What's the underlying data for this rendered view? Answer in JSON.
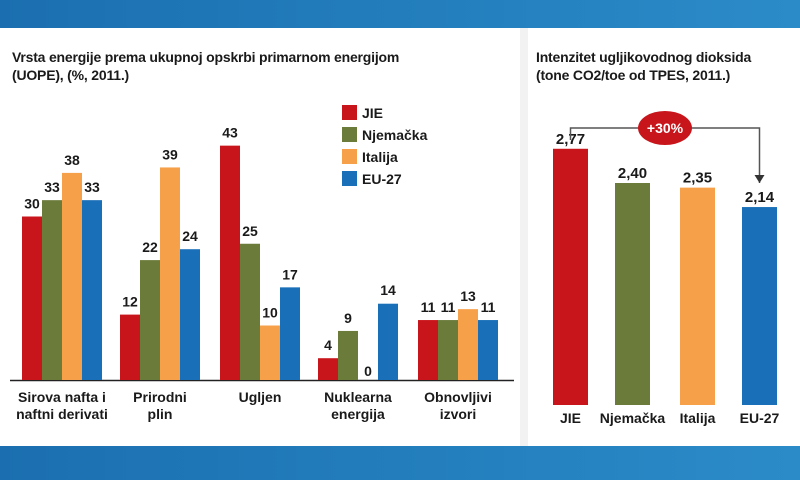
{
  "colors": {
    "JIE": "#c8151b",
    "Njemacka": "#6b7b3a",
    "Italija": "#f7a04a",
    "EU27": "#1a70b8"
  },
  "left_title": {
    "line1": "Vrsta energije prema ukupnoj opskrbi primarnom energijom",
    "line2": "(UOPE), (%, 2011.)"
  },
  "right_title": {
    "line1": "Intenzitet ugljikovodnog dioksida",
    "line2": "(tone CO2/toe od TPES, 2011.)"
  },
  "chart_data": [
    {
      "type": "bar",
      "title": "Vrsta energije prema ukupnoj opskrbi primarnom energijom (UOPE), (%, 2011.)",
      "categories": [
        [
          "Sirova nafta i",
          "naftni derivati"
        ],
        [
          "Prirodni",
          "plin"
        ],
        [
          "Ugljen"
        ],
        [
          "Nuklearna",
          "energija"
        ],
        [
          "Obnovljivi",
          "izvori"
        ]
      ],
      "series": [
        {
          "name": "JIE",
          "values": [
            30,
            12,
            43,
            4,
            11
          ]
        },
        {
          "name": "Njemačka",
          "values": [
            33,
            22,
            25,
            9,
            11
          ]
        },
        {
          "name": "Italija",
          "values": [
            38,
            39,
            10,
            0,
            13
          ]
        },
        {
          "name": "EU-27",
          "values": [
            33,
            24,
            17,
            14,
            11
          ]
        }
      ],
      "labels": [
        [
          "30",
          "12",
          "43",
          "4",
          "11"
        ],
        [
          "33",
          "22",
          "25",
          "9",
          "11"
        ],
        [
          "38",
          "39",
          "10",
          "0",
          "13"
        ],
        [
          "33",
          "24",
          "17",
          "14",
          "11"
        ]
      ],
      "ylim": [
        0,
        45
      ],
      "legend": "top-center"
    },
    {
      "type": "bar",
      "title": "Intenzitet ugljikovodnog dioksida (tone CO2/toe od TPES, 2011.)",
      "categories": [
        "JIE",
        "Njemačka",
        "Italija",
        "EU-27"
      ],
      "values": [
        2.77,
        2.4,
        2.35,
        2.14
      ],
      "labels": [
        "2,77",
        "2,40",
        "2,35",
        "2,14"
      ],
      "annotation": "+30%",
      "ylim": [
        0,
        3
      ]
    }
  ]
}
